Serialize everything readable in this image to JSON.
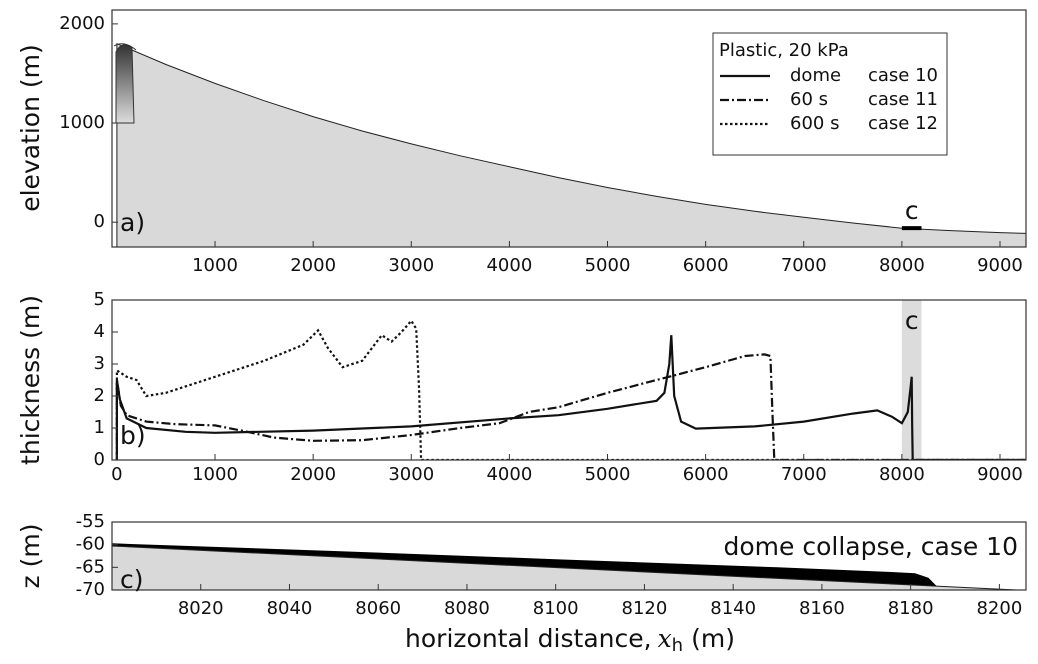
{
  "chart_data": [
    {
      "type": "area",
      "ylabel": "elevation (m)",
      "annotation": "a)",
      "xlim": [
        -50,
        9265
      ],
      "ylim": [
        -250,
        2140
      ],
      "xticks": [
        1000,
        2000,
        3000,
        4000,
        5000,
        6000,
        7000,
        8000,
        9000
      ],
      "yticks": [
        0,
        1000,
        2000
      ],
      "x": [
        0,
        500,
        1000,
        1500,
        2000,
        2500,
        3000,
        3500,
        4000,
        4500,
        5000,
        5500,
        6000,
        6500,
        7000,
        7500,
        8000,
        8500,
        9000,
        9265
      ],
      "values": [
        1800,
        1590,
        1400,
        1225,
        1065,
        920,
        790,
        670,
        560,
        450,
        350,
        260,
        180,
        110,
        50,
        -8,
        -60,
        -85,
        -105,
        -113
      ],
      "color": "#d9d9d9",
      "marker": {
        "label": "c",
        "x": [
          8000,
          8200
        ],
        "y": -60
      },
      "legend": {
        "title": "Plastic, 20 kPa",
        "corner": "upper right"
      }
    },
    {
      "type": "line",
      "ylabel": "thickness (m)",
      "annotation": "b)",
      "xlim": [
        -50,
        9265
      ],
      "ylim": [
        0,
        5
      ],
      "xticks": [
        0,
        1000,
        2000,
        3000,
        4000,
        5000,
        6000,
        7000,
        8000,
        9000
      ],
      "yticks": [
        0,
        1,
        2,
        3,
        4,
        5
      ],
      "highlight": {
        "label": "c",
        "x": [
          8000,
          8200
        ],
        "color": "#dcdcdc"
      },
      "series": [
        {
          "name": "dome",
          "case": "case 10",
          "dash": "solid",
          "color": "#111111",
          "x": [
            0,
            0,
            30,
            100,
            300,
            700,
            1000,
            2000,
            3000,
            4000,
            4500,
            5000,
            5500,
            5580,
            5630,
            5650,
            5680,
            5750,
            5900,
            6500,
            7000,
            7500,
            7750,
            7900,
            8000,
            8060,
            8090,
            8100,
            8105,
            8110,
            9265
          ],
          "values": [
            0,
            2.5,
            1.9,
            1.3,
            1.0,
            0.88,
            0.85,
            0.92,
            1.05,
            1.3,
            1.4,
            1.6,
            1.85,
            2.1,
            3.0,
            3.9,
            2.0,
            1.2,
            0.98,
            1.05,
            1.2,
            1.45,
            1.55,
            1.35,
            1.15,
            1.5,
            2.3,
            2.6,
            1.0,
            0,
            0
          ]
        },
        {
          "name": "60 s",
          "case": "case 11",
          "dash": "dashdot",
          "color": "#111111",
          "x": [
            0,
            0,
            40,
            100,
            300,
            600,
            1000,
            1300,
            1600,
            2000,
            2500,
            3000,
            3500,
            3900,
            4200,
            4500,
            5000,
            5500,
            6000,
            6400,
            6600,
            6660,
            6680,
            6700,
            9265
          ],
          "values": [
            0,
            2.5,
            1.7,
            1.4,
            1.2,
            1.12,
            1.08,
            0.9,
            0.7,
            0.6,
            0.62,
            0.78,
            1.0,
            1.15,
            1.5,
            1.65,
            2.1,
            2.5,
            2.9,
            3.25,
            3.3,
            3.25,
            1.5,
            0,
            0
          ]
        },
        {
          "name": "600 s",
          "case": "case 12",
          "dash": "dotted",
          "color": "#111111",
          "x": [
            0,
            0,
            100,
            200,
            300,
            500,
            1000,
            1500,
            1900,
            2050,
            2150,
            2300,
            2500,
            2700,
            2800,
            2900,
            3000,
            3050,
            3080,
            3100,
            9265
          ],
          "values": [
            0,
            2.8,
            2.6,
            2.5,
            2.0,
            2.1,
            2.6,
            3.1,
            3.6,
            4.05,
            3.5,
            2.9,
            3.1,
            3.9,
            3.7,
            4.0,
            4.35,
            4.1,
            2.2,
            0,
            0
          ]
        }
      ]
    },
    {
      "type": "area",
      "ylabel": "z (m)",
      "annotation": "c)",
      "title": "dome collapse, case 10",
      "xlabel": {
        "prefix": "horizontal distance,",
        "symbol": "x",
        "subscript": "h",
        "suffix": "(m)"
      },
      "xlim": [
        8000,
        8206
      ],
      "ylim": [
        -70,
        -55
      ],
      "xticks": [
        8020,
        8040,
        8060,
        8080,
        8100,
        8120,
        8140,
        8160,
        8180,
        8200
      ],
      "yticks": [
        -55,
        -60,
        -65,
        -70
      ],
      "x": [
        8000,
        8206
      ],
      "values": [
        -60.3,
        -70.1
      ],
      "color": "#d9d9d9",
      "surface": {
        "x": [
          8000,
          8050,
          8100,
          8150,
          8175,
          8181,
          8184,
          8186
        ],
        "values": [
          -59.7,
          -61.4,
          -63.2,
          -65.0,
          -66.0,
          -66.3,
          -67.3,
          -69.3
        ],
        "color": "#000000"
      }
    }
  ]
}
